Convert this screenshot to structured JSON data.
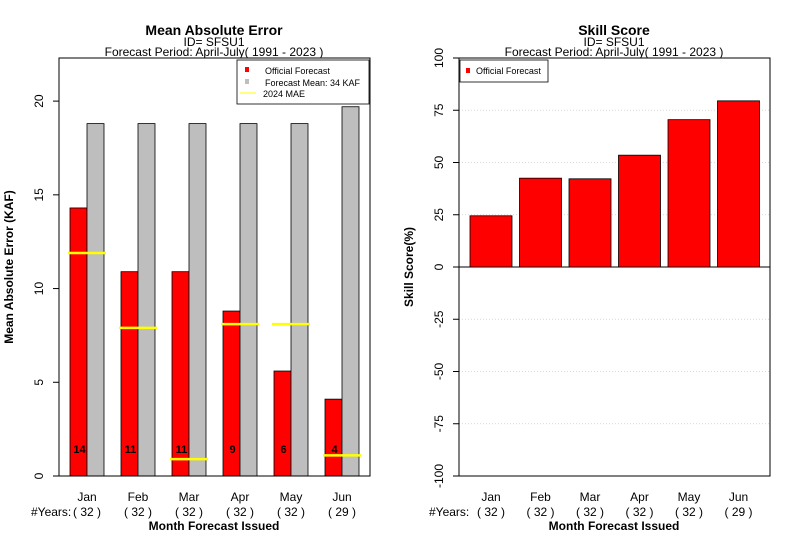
{
  "chart_data": [
    {
      "type": "bar",
      "title": "Mean Absolute Error",
      "subtitle_id": "ID= SFSU1",
      "subtitle_period": "Forecast Period: April-July( 1991 - 2023 )",
      "xlabel": "Month Forecast Issued",
      "ylabel": "Mean Absolute Error (KAF)",
      "ylim": [
        0,
        22.3
      ],
      "yticks": [
        "0",
        "5",
        "10",
        "15",
        "20"
      ],
      "ytick_values": [
        0,
        5,
        10,
        15,
        20
      ],
      "categories": [
        "Jan",
        "Feb",
        "Mar",
        "Apr",
        "May",
        "Jun"
      ],
      "years_label": "#Years:",
      "years": [
        "( 32 )",
        "( 32 )",
        "( 32 )",
        "( 32 )",
        "( 32 )",
        "( 29 )"
      ],
      "series": [
        {
          "name": "Official Forecast",
          "color": "#ff0000",
          "values": [
            14.3,
            10.9,
            10.9,
            8.8,
            5.6,
            4.1
          ]
        },
        {
          "name": "Forecast Mean: 34 KAF",
          "color": "#bebebe",
          "values": [
            18.8,
            18.8,
            18.8,
            18.8,
            18.8,
            19.7
          ]
        }
      ],
      "mae_2024": {
        "name": " 2024  MAE",
        "color": "#ffff00",
        "values": [
          11.9,
          7.9,
          0.9,
          8.1,
          8.1,
          1.1
        ]
      },
      "data_labels": [
        "14",
        "11",
        "11",
        "9",
        "6",
        "4"
      ],
      "legend_position": "top-right",
      "grid": false
    },
    {
      "type": "bar",
      "title": "Skill Score",
      "subtitle_id": "ID= SFSU1",
      "subtitle_period": "Forecast Period: April-July( 1991 - 2023 )",
      "xlabel": "Month Forecast Issued",
      "ylabel": "Skill Score(%)",
      "ylim": [
        -100,
        100
      ],
      "yticks": [
        "-100",
        "-75",
        "-50",
        "-25",
        "0",
        "25",
        "50",
        "75",
        "100"
      ],
      "ytick_values": [
        -100,
        -75,
        -50,
        -25,
        0,
        25,
        50,
        75,
        100
      ],
      "categories": [
        "Jan",
        "Feb",
        "Mar",
        "Apr",
        "May",
        "Jun"
      ],
      "years_label": "#Years:",
      "years": [
        "( 32 )",
        "( 32 )",
        "( 32 )",
        "( 32 )",
        "( 32 )",
        "( 29 )"
      ],
      "series": [
        {
          "name": "Official Forecast",
          "color": "#ff0000",
          "values": [
            24.5,
            42.5,
            42.2,
            53.5,
            70.5,
            79.5
          ]
        }
      ],
      "legend_position": "top-left",
      "grid": true
    }
  ]
}
